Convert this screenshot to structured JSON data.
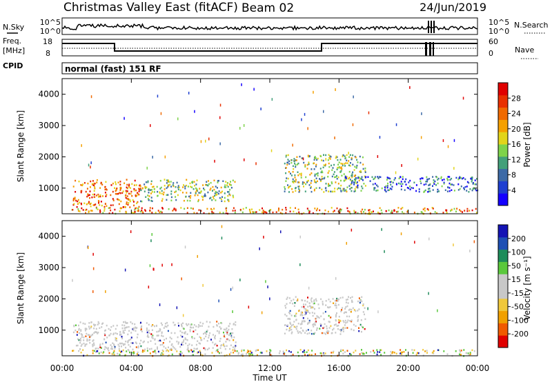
{
  "header": {
    "station": "Christmas Valley East (fitACF)",
    "beam": "Beam 02",
    "date": "24/Jun/2019",
    "mode": "normal (fast) 151 RF"
  },
  "nsky_panel": {
    "left_label": "N.Sky",
    "right_label": "N.Search",
    "left_ticks": [
      "10^5",
      "10^0"
    ],
    "right_ticks": [
      "10^5",
      "10^0"
    ]
  },
  "freq_panel": {
    "left_label_1": "Freq.",
    "left_label_2": "[MHz]",
    "left_ticks": [
      "18",
      "8"
    ],
    "right_label": "Nave",
    "right_ticks": [
      "60",
      "0"
    ],
    "cpid_label": "CPID"
  },
  "chart_data": [
    {
      "type": "heatmap",
      "title": "",
      "xlabel": "",
      "ylabel": "Slant Range [km]",
      "xlim": [
        0,
        24
      ],
      "ylim": [
        180,
        4500
      ],
      "x_ticks": [
        "00:00",
        "04:00",
        "08:00",
        "12:00",
        "16:00",
        "20:00",
        "00:00"
      ],
      "y_ticks": [
        1000,
        2000,
        3000,
        4000
      ],
      "colorbar": {
        "label": "Power [dB]",
        "ticks": [
          "4",
          "8",
          "12",
          "16",
          "20",
          "24",
          "28"
        ],
        "colors": [
          "#1400ff",
          "#1e3fd0",
          "#3d6aa6",
          "#43a07a",
          "#7ed34a",
          "#e2d41a",
          "#f5a000",
          "#f06a00",
          "#e83000",
          "#e00000"
        ]
      },
      "echo_regions": [
        {
          "t0": 0.6,
          "t1": 4.5,
          "r0": 400,
          "r1": 1300,
          "value": "strong"
        },
        {
          "t0": 4.5,
          "t1": 10.0,
          "r0": 600,
          "r1": 1300,
          "value": "moderate"
        },
        {
          "t0": 12.8,
          "t1": 17.5,
          "r0": 900,
          "r1": 2100,
          "value": "moderate"
        },
        {
          "t0": 16.0,
          "t1": 24.0,
          "r0": 900,
          "r1": 1400,
          "value": "weak"
        },
        {
          "t0": 0.5,
          "t1": 24.0,
          "r0": 200,
          "r1": 400,
          "value": "ground"
        }
      ]
    },
    {
      "type": "heatmap",
      "title": "",
      "xlabel": "Time UT",
      "ylabel": "Slant Range [km]",
      "xlim": [
        0,
        24
      ],
      "ylim": [
        180,
        4500
      ],
      "x_ticks": [
        "00:00",
        "04:00",
        "08:00",
        "12:00",
        "16:00",
        "20:00",
        "00:00"
      ],
      "y_ticks": [
        1000,
        2000,
        3000,
        4000
      ],
      "colorbar": {
        "label": "Velocity [m s⁻¹]",
        "ticks": [
          "200",
          "100",
          "50",
          "15",
          "-15",
          "-50",
          "-100",
          "-200"
        ],
        "colors": [
          "#1414b4",
          "#1e50b4",
          "#1e8c5a",
          "#5ac83c",
          "#c8c8c8",
          "#c8c8c8",
          "#f0c83c",
          "#f0a000",
          "#f05a00",
          "#e00000"
        ]
      },
      "echo_regions": [
        {
          "t0": 0.6,
          "t1": 10.0,
          "r0": 400,
          "r1": 1300,
          "value": "near-zero"
        },
        {
          "t0": 12.8,
          "t1": 17.5,
          "r0": 900,
          "r1": 2100,
          "value": "near-zero"
        },
        {
          "t0": 0.5,
          "t1": 24.0,
          "r0": 200,
          "r1": 400,
          "value": "mixed"
        }
      ]
    }
  ]
}
